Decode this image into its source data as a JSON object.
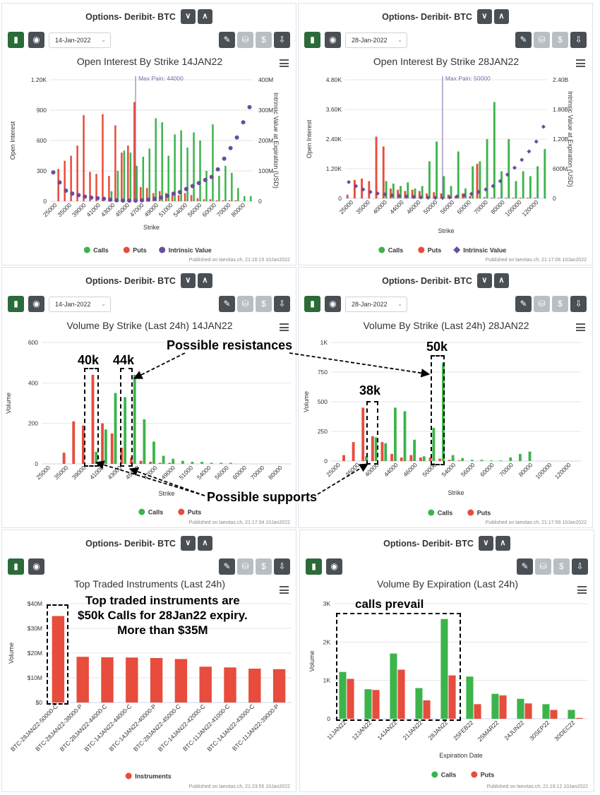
{
  "panels": [
    {
      "header_title": "Options- Deribit- BTC",
      "date": "14-Jan-2022",
      "published": "Published on laevitas.ch, 21:16:15 10Jan2022",
      "has_date": true
    },
    {
      "header_title": "Options- Deribit- BTC",
      "date": "28-Jan-2022",
      "published": "Published on laevitas.ch, 21:17:06 10Jan2022",
      "has_date": true
    },
    {
      "header_title": "Options- Deribit- BTC",
      "date": "14-Jan-2022",
      "published": "Published on laevitas.ch, 21:17:34 10Jan2022",
      "has_date": true
    },
    {
      "header_title": "Options- Deribit- BTC",
      "date": "28-Jan-2022",
      "published": "Published on laevitas.ch, 21:17:59 10Jan2022",
      "has_date": true
    },
    {
      "header_title": "Options- Deribit- BTC",
      "date": "",
      "published": "Published on laevitas.ch, 21:23:55 10Jan2022",
      "has_date": false
    },
    {
      "header_title": "Options- Deribit- BTC",
      "date": "",
      "published": "Published on laevitas.ch, 21:19:12 10Jan2022",
      "has_date": false
    }
  ],
  "colors": {
    "calls": "#3cb44b",
    "puts": "#e74c3c",
    "intrinsic": "#6a4c9c",
    "maxpain": "#7a6aa8"
  },
  "annotations": {
    "resistances": "Possible resistances",
    "supports": "Possible supports",
    "k40": "40k",
    "k44": "44k",
    "k38": "38k",
    "k50": "50k",
    "top_traded": [
      "Top traded instruments are",
      "$50k Calls for 28Jan22 expiry.",
      "More than $35M"
    ],
    "calls_prevail": "calls prevail"
  },
  "chart_data": [
    {
      "type": "bar",
      "title": "Open Interest By Strike 14JAN22",
      "xlabel": "Strike",
      "ylabel": "Open Interest",
      "ylabel_right": "Intrinsic Value at Expiration (USD)",
      "ylim": [
        0,
        1200
      ],
      "ylim_right": [
        0,
        400000000
      ],
      "yticks": [
        "0",
        "300",
        "600",
        "900",
        "1.20K"
      ],
      "yticks_right": [
        "0",
        "100M",
        "200M",
        "300M",
        "400M"
      ],
      "xtick_labels": [
        "25000",
        "35000",
        "39000",
        "41000",
        "43000",
        "45000",
        "47000",
        "49000",
        "51000",
        "54000",
        "56000",
        "60000",
        "70000",
        "80000"
      ],
      "max_pain_label": "Max Pain: 44000",
      "max_pain_index": 13,
      "legend": [
        "Calls",
        "Puts",
        "Intrinsic Value"
      ],
      "calls": [
        0,
        0,
        0,
        0,
        0,
        0,
        0,
        0,
        0,
        100,
        300,
        500,
        480,
        350,
        440,
        520,
        820,
        780,
        450,
        660,
        700,
        530,
        680,
        600,
        300,
        760,
        250,
        350,
        280,
        130,
        50,
        50
      ],
      "puts": [
        0,
        320,
        400,
        450,
        550,
        850,
        290,
        270,
        860,
        250,
        750,
        480,
        550,
        980,
        140,
        130,
        80,
        100,
        80,
        60,
        60,
        80,
        60,
        30,
        20,
        20,
        10,
        10,
        10,
        10,
        0,
        0
      ],
      "intrinsic": [
        95,
        62,
        35,
        25,
        20,
        15,
        12,
        10,
        8,
        5,
        3,
        2,
        2,
        2,
        3,
        5,
        8,
        12,
        18,
        25,
        30,
        40,
        50,
        60,
        70,
        80,
        105,
        140,
        175,
        210,
        260,
        310
      ]
    },
    {
      "type": "bar",
      "title": "Open Interest By Strike 28JAN22",
      "xlabel": "Strike",
      "ylabel": "Open Interest",
      "ylabel_right": "Intrinsic Value at Expiration (USD)",
      "ylim": [
        0,
        4800
      ],
      "ylim_right": [
        0,
        2400000000
      ],
      "yticks": [
        "0",
        "1.20K",
        "2.40K",
        "3.60K",
        "4.80K"
      ],
      "yticks_right": [
        "0",
        "600M",
        "1.20B",
        "1.80B",
        "2.40B"
      ],
      "xtick_labels": [
        "25000",
        "35000",
        "40000",
        "44000",
        "46000",
        "50000",
        "56000",
        "60000",
        "70000",
        "80000",
        "100000",
        "120000"
      ],
      "max_pain_label": "Max Pain: 50000",
      "max_pain_index": 13,
      "legend": [
        "Calls",
        "Puts",
        "Intrinsic Value"
      ],
      "calls": [
        0,
        0,
        0,
        0,
        0,
        700,
        600,
        500,
        650,
        400,
        500,
        1500,
        2300,
        900,
        500,
        1900,
        400,
        1300,
        1500,
        2400,
        3900,
        1100,
        2400,
        700,
        1100,
        900,
        1300,
        2000
      ],
      "puts": [
        150,
        750,
        800,
        700,
        2500,
        2100,
        400,
        350,
        300,
        350,
        300,
        200,
        250,
        200,
        150,
        100,
        200,
        100,
        1400,
        50,
        30,
        30,
        30,
        30,
        30,
        30,
        30,
        0
      ],
      "intrinsic": [
        330,
        250,
        180,
        130,
        100,
        80,
        60,
        50,
        40,
        30,
        20,
        15,
        10,
        10,
        20,
        40,
        60,
        90,
        130,
        180,
        250,
        350,
        480,
        620,
        780,
        950,
        1150,
        1450
      ]
    },
    {
      "type": "bar",
      "title": "Volume By Strike (Last 24h) 14JAN22",
      "xlabel": "Strike",
      "ylabel": "Volume",
      "ylim": [
        0,
        600
      ],
      "yticks": [
        "0",
        "200",
        "400",
        "600"
      ],
      "xtick_labels": [
        "25000",
        "35000",
        "39000",
        "41000",
        "43000",
        "45000",
        "47000",
        "49000",
        "51000",
        "54000",
        "56000",
        "60000",
        "70000",
        "80000"
      ],
      "legend": [
        "Calls",
        "Puts"
      ],
      "calls": [
        0,
        0,
        0,
        0,
        0,
        60,
        170,
        350,
        330,
        440,
        220,
        110,
        40,
        25,
        15,
        10,
        10,
        5,
        5,
        5,
        0,
        0,
        0,
        0,
        0,
        0
      ],
      "puts": [
        0,
        0,
        55,
        210,
        190,
        440,
        200,
        150,
        80,
        30,
        15,
        10,
        5,
        5,
        0,
        0,
        0,
        0,
        0,
        0,
        0,
        0,
        0,
        0,
        0,
        0
      ]
    },
    {
      "type": "bar",
      "title": "Volume By Strike (Last 24h) 28JAN22",
      "xlabel": "Strike",
      "ylabel": "Volume",
      "ylim": [
        0,
        1000
      ],
      "yticks": [
        "0",
        "250",
        "500",
        "750",
        "1K"
      ],
      "xtick_labels": [
        "25000",
        "35000",
        "40000",
        "44000",
        "46000",
        "50000",
        "54000",
        "56000",
        "60000",
        "70000",
        "80000",
        "100000",
        "120000"
      ],
      "legend": [
        "Calls",
        "Puts"
      ],
      "calls": [
        0,
        0,
        0,
        40,
        200,
        150,
        450,
        420,
        180,
        40,
        280,
        830,
        50,
        25,
        10,
        10,
        5,
        5,
        30,
        60,
        80,
        0,
        0,
        0,
        0,
        0
      ],
      "puts": [
        0,
        50,
        160,
        450,
        210,
        160,
        60,
        30,
        50,
        30,
        30,
        20,
        10,
        5,
        0,
        0,
        0,
        0,
        0,
        0,
        0,
        0,
        0,
        0,
        0,
        0
      ]
    },
    {
      "type": "bar",
      "title": "Top Traded Instruments (Last 24h)",
      "xlabel": "",
      "ylabel": "Volume",
      "ylim": [
        0,
        40000000
      ],
      "yticks": [
        "$0",
        "$10M",
        "$20M",
        "$30M",
        "$40M"
      ],
      "legend": [
        "Instruments"
      ],
      "categories": [
        "BTC-28JAN22-50000-C",
        "BTC-28JAN22-38000-P",
        "BTC-28JAN22-44000-C",
        "BTC-14JAN22-44000-C",
        "BTC-14JAN22-40000-P",
        "BTC-28JAN22-45000-C",
        "BTC-14JAN22-42000-C",
        "BTC-11JAN22-41000-C",
        "BTC-14JAN22-43000-C",
        "BTC-11JAN22-39000-P"
      ],
      "values": [
        35000000,
        18500000,
        18300000,
        18200000,
        18000000,
        17600000,
        14500000,
        14200000,
        13700000,
        13500000
      ]
    },
    {
      "type": "bar",
      "title": "Volume By Expiration (Last 24h)",
      "xlabel": "Expiration Date",
      "ylabel": "Volume",
      "ylim": [
        0,
        3000
      ],
      "yticks": [
        "0",
        "1K",
        "2K",
        "3K"
      ],
      "legend": [
        "Calls",
        "Puts"
      ],
      "categories": [
        "11JAN22",
        "12JAN22",
        "14JAN22",
        "21JAN22",
        "28JAN22",
        "25FEB22",
        "25MAR22",
        "24JUN22",
        "30SEP22",
        "30DEC22"
      ],
      "series": [
        {
          "name": "Calls",
          "values": [
            1220,
            770,
            1700,
            800,
            2600,
            1100,
            650,
            520,
            380,
            230
          ]
        },
        {
          "name": "Puts",
          "values": [
            1040,
            750,
            1280,
            480,
            1130,
            380,
            610,
            400,
            230,
            20
          ]
        }
      ]
    }
  ]
}
